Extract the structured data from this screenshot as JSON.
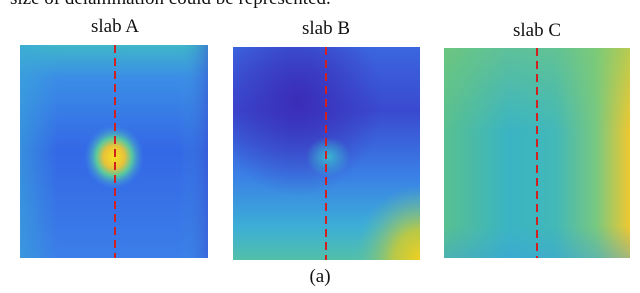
{
  "intro_text": "size of delamination could be represented.",
  "panels": [
    {
      "label": "slab A"
    },
    {
      "label": "slab B"
    },
    {
      "label": "slab C"
    }
  ],
  "caption": "(a)"
}
